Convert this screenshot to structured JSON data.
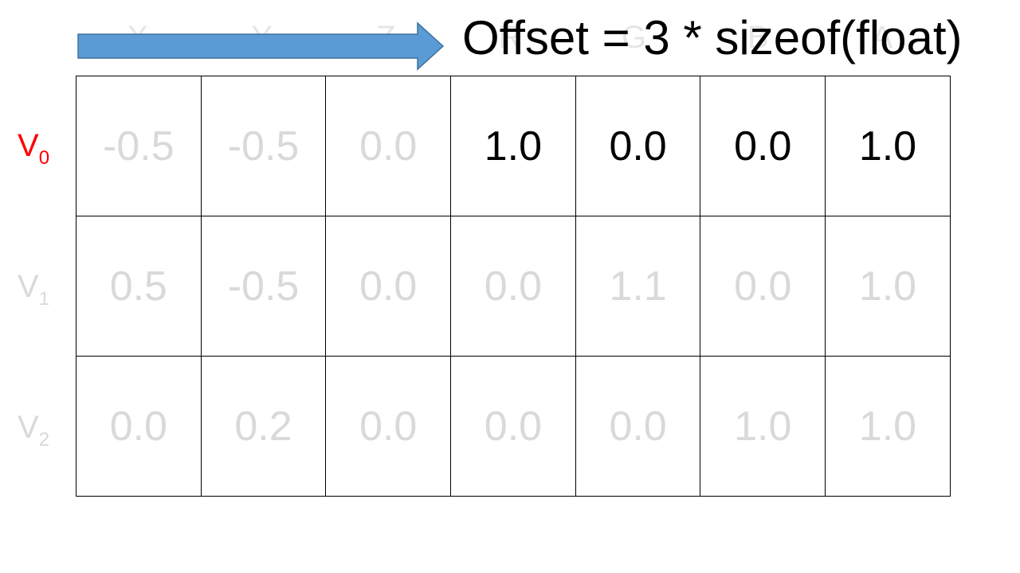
{
  "title": "Offset = 3 * sizeof(float)",
  "column_headers": [
    "X",
    "Y",
    "Z",
    "R",
    "G",
    "B",
    "A"
  ],
  "rows": [
    {
      "label": "V",
      "subscript": "0",
      "highlighted": true,
      "cells": [
        "-0.5",
        "-0.5",
        "0.0",
        "1.0",
        "0.0",
        "0.0",
        "1.0"
      ],
      "active_cells": [
        false,
        false,
        false,
        true,
        true,
        true,
        true
      ]
    },
    {
      "label": "V",
      "subscript": "1",
      "highlighted": false,
      "cells": [
        "0.5",
        "-0.5",
        "0.0",
        "0.0",
        "1.1",
        "0.0",
        "1.0"
      ],
      "active_cells": [
        false,
        false,
        false,
        false,
        false,
        false,
        false
      ]
    },
    {
      "label": "V",
      "subscript": "2",
      "highlighted": false,
      "cells": [
        "0.0",
        "0.2",
        "0.0",
        "0.0",
        "0.0",
        "1.0",
        "1.0"
      ],
      "active_cells": [
        false,
        false,
        false,
        false,
        false,
        false,
        false
      ]
    }
  ],
  "colors": {
    "arrow_fill": "#5b9bd5",
    "arrow_stroke": "#41719c",
    "highlight_label": "#ff0000",
    "faded_text": "#d9d9d9",
    "active_text": "#000000"
  }
}
